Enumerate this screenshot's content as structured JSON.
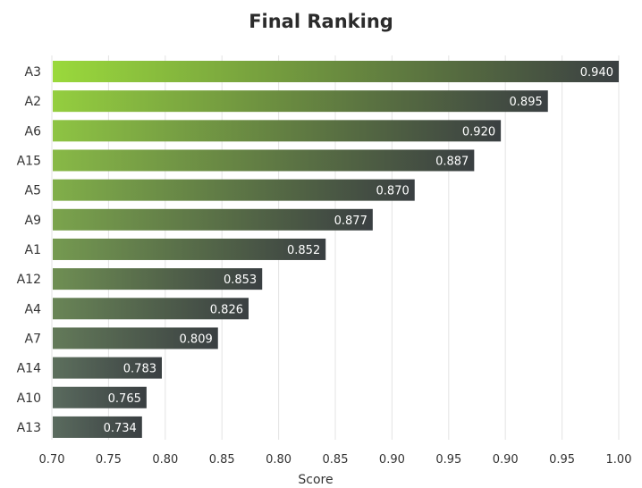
{
  "chart_data": {
    "type": "bar",
    "orientation": "horizontal",
    "title": "Final Ranking",
    "xlabel": "Score",
    "ylabel": "",
    "categories": [
      "A3",
      "A2",
      "A6",
      "A15",
      "A5",
      "A9",
      "A1",
      "A12",
      "A4",
      "A7",
      "A14",
      "A10",
      "A13"
    ],
    "values": [
      0.94,
      0.895,
      0.92,
      0.887,
      0.87,
      0.877,
      0.852,
      0.853,
      0.826,
      0.809,
      0.783,
      0.765,
      0.734
    ],
    "value_labels": [
      "0.940",
      "0.895",
      "0.920",
      "0.887",
      "0.870",
      "0.877",
      "0.852",
      "0.853",
      "0.826",
      "0.809",
      "0.783",
      "0.765",
      "0.734"
    ],
    "x_ticks": [
      "0.70",
      "0.75",
      "0.80",
      "0.85",
      "0.80",
      "0.85",
      "0.90",
      "0.95",
      "0.90",
      "0.95",
      "1.00"
    ],
    "xlim": [
      0.7,
      1.0
    ],
    "bar_lengths": [
      1.0,
      0.875,
      0.792,
      0.745,
      0.64,
      0.566,
      0.483,
      0.371,
      0.347,
      0.293,
      0.194,
      0.167,
      0.159
    ],
    "grid": true,
    "legend": "none",
    "colors": {
      "gradient_start": "#9ad93c",
      "gradient_end": "#3a3f42",
      "gridline": "#e3e3e3",
      "text": "#333333",
      "value_text": "#ffffff"
    }
  }
}
